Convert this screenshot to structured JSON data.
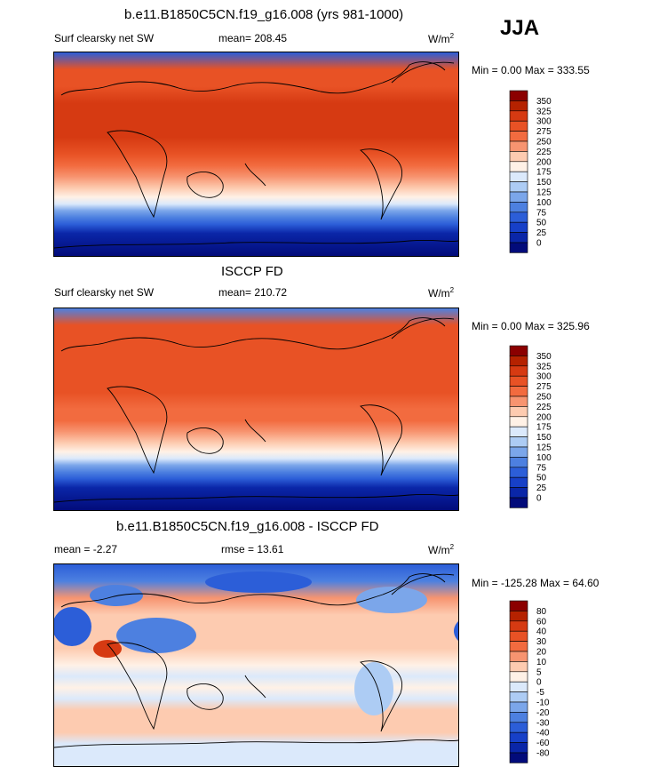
{
  "season": "JJA",
  "chart_data": [
    {
      "type": "heatmap",
      "panel": "model",
      "title": "b.e11.B1850C5CN.f19_g16.008 (yrs 981-1000)",
      "left_label": "Surf clearsky net SW",
      "mean_label": "mean= 208.45",
      "units": "W/m",
      "units_exp": "2",
      "minmax_label": "Min =   0.00 Max = 333.55",
      "colorbar_levels": [
        "350",
        "325",
        "300",
        "275",
        "250",
        "225",
        "200",
        "175",
        "150",
        "125",
        "100",
        "75",
        "50",
        "25",
        "0"
      ],
      "colorbar_colors": [
        "#8b0000",
        "#b52200",
        "#d63a12",
        "#e85225",
        "#f26b3f",
        "#f79470",
        "#fdcbb0",
        "#fff1e6",
        "#dbe9fb",
        "#adccf4",
        "#7ba6ea",
        "#4d80e0",
        "#2c5ed8",
        "#1740c8",
        "#0a26a8",
        "#020b7a"
      ],
      "lat_profile": [
        [
          90,
          "#2c5ed8"
        ],
        [
          75,
          "#e85225"
        ],
        [
          60,
          "#e85225"
        ],
        [
          45,
          "#d63a12"
        ],
        [
          30,
          "#d63a12"
        ],
        [
          15,
          "#d63a12"
        ],
        [
          0,
          "#e85225"
        ],
        [
          -10,
          "#f26b3f"
        ],
        [
          -20,
          "#f79470"
        ],
        [
          -30,
          "#fdcbb0"
        ],
        [
          -38,
          "#fff1e6"
        ],
        [
          -44,
          "#dbe9fb"
        ],
        [
          -50,
          "#7ba6ea"
        ],
        [
          -56,
          "#4d80e0"
        ],
        [
          -62,
          "#2c5ed8"
        ],
        [
          -70,
          "#0a26a8"
        ],
        [
          -90,
          "#020b7a"
        ]
      ]
    },
    {
      "type": "heatmap",
      "panel": "obs",
      "title": "ISCCP FD",
      "left_label": "Surf clearsky net SW",
      "mean_label": "mean= 210.72",
      "units": "W/m",
      "units_exp": "2",
      "minmax_label": "Min =   0.00 Max = 325.96",
      "colorbar_levels": [
        "350",
        "325",
        "300",
        "275",
        "250",
        "225",
        "200",
        "175",
        "150",
        "125",
        "100",
        "75",
        "50",
        "25",
        "0"
      ],
      "colorbar_colors": [
        "#8b0000",
        "#b52200",
        "#d63a12",
        "#e85225",
        "#f26b3f",
        "#f79470",
        "#fdcbb0",
        "#fff1e6",
        "#dbe9fb",
        "#adccf4",
        "#7ba6ea",
        "#4d80e0",
        "#2c5ed8",
        "#1740c8",
        "#0a26a8",
        "#020b7a"
      ],
      "lat_profile": [
        [
          90,
          "#4d80e0"
        ],
        [
          75,
          "#e85225"
        ],
        [
          60,
          "#e85225"
        ],
        [
          45,
          "#e85225"
        ],
        [
          30,
          "#e85225"
        ],
        [
          15,
          "#e85225"
        ],
        [
          0,
          "#f26b3f"
        ],
        [
          -10,
          "#f26b3f"
        ],
        [
          -20,
          "#f79470"
        ],
        [
          -30,
          "#fdcbb0"
        ],
        [
          -38,
          "#fff1e6"
        ],
        [
          -44,
          "#dbe9fb"
        ],
        [
          -50,
          "#7ba6ea"
        ],
        [
          -56,
          "#4d80e0"
        ],
        [
          -62,
          "#2c5ed8"
        ],
        [
          -70,
          "#0a26a8"
        ],
        [
          -90,
          "#020b7a"
        ]
      ]
    },
    {
      "type": "heatmap",
      "panel": "difference",
      "title": "b.e11.B1850C5CN.f19_g16.008 - ISCCP FD",
      "mean_label": "mean =  -2.27",
      "rmse_label": "rmse =  13.61",
      "units": "W/m",
      "units_exp": "2",
      "minmax_label": "Min = -125.28 Max =  64.60",
      "colorbar_levels": [
        "80",
        "60",
        "40",
        "30",
        "20",
        "10",
        "5",
        "0",
        "-5",
        "-10",
        "-20",
        "-30",
        "-40",
        "-60",
        "-80"
      ],
      "colorbar_colors": [
        "#8b0000",
        "#b52200",
        "#d63a12",
        "#e85225",
        "#f26b3f",
        "#f79470",
        "#fdcbb0",
        "#fff1e6",
        "#dbe9fb",
        "#adccf4",
        "#7ba6ea",
        "#4d80e0",
        "#2c5ed8",
        "#1740c8",
        "#0a26a8",
        "#020b7a"
      ],
      "lat_profile": [
        [
          90,
          "#2c5ed8"
        ],
        [
          75,
          "#4d80e0"
        ],
        [
          60,
          "#f79470"
        ],
        [
          45,
          "#fdcbb0"
        ],
        [
          30,
          "#fdcbb0"
        ],
        [
          15,
          "#fdcbb0"
        ],
        [
          0,
          "#fff1e6"
        ],
        [
          -10,
          "#dbe9fb"
        ],
        [
          -20,
          "#fff1e6"
        ],
        [
          -30,
          "#dbe9fb"
        ],
        [
          -40,
          "#fdcbb0"
        ],
        [
          -50,
          "#fdcbb0"
        ],
        [
          -60,
          "#fdcbb0"
        ],
        [
          -70,
          "#dbe9fb"
        ],
        [
          -90,
          "#dbe9fb"
        ]
      ]
    }
  ]
}
